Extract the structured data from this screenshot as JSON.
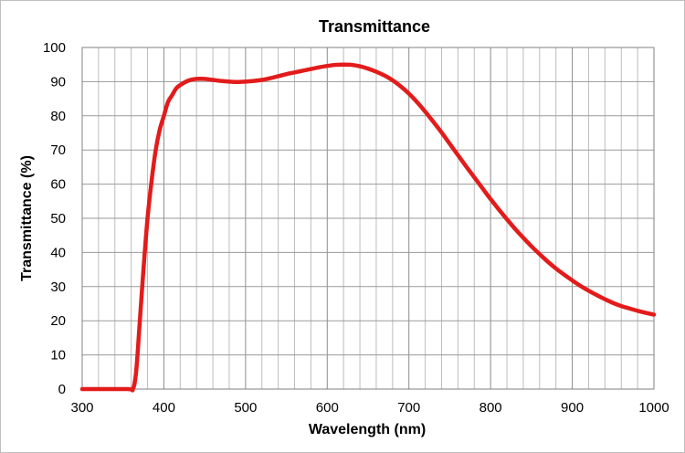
{
  "chart_data": {
    "type": "line",
    "title": "Transmittance",
    "xlabel": "Wavelength (nm)",
    "ylabel": "Transmittance (%)",
    "xlim": [
      300,
      1000
    ],
    "ylim": [
      0,
      100
    ],
    "x_ticks": [
      "300",
      "400",
      "500",
      "600",
      "700",
      "800",
      "900",
      "1000"
    ],
    "y_ticks": [
      "0",
      "10",
      "20",
      "30",
      "40",
      "50",
      "60",
      "70",
      "80",
      "90",
      "100"
    ],
    "grid": true,
    "legend": "none",
    "series": [
      {
        "color": "#e31b1b",
        "points": [
          [
            300,
            0
          ],
          [
            355,
            0
          ],
          [
            362,
            0
          ],
          [
            366,
            5
          ],
          [
            370,
            18
          ],
          [
            375,
            35
          ],
          [
            380,
            50
          ],
          [
            385,
            61
          ],
          [
            390,
            70
          ],
          [
            395,
            76
          ],
          [
            400,
            80
          ],
          [
            405,
            84
          ],
          [
            410,
            86
          ],
          [
            415,
            88
          ],
          [
            420,
            89
          ],
          [
            430,
            90.3
          ],
          [
            440,
            90.8
          ],
          [
            450,
            90.8
          ],
          [
            460,
            90.5
          ],
          [
            470,
            90.2
          ],
          [
            480,
            90
          ],
          [
            490,
            89.9
          ],
          [
            500,
            90
          ],
          [
            510,
            90.2
          ],
          [
            520,
            90.5
          ],
          [
            530,
            91
          ],
          [
            540,
            91.6
          ],
          [
            550,
            92.2
          ],
          [
            560,
            92.7
          ],
          [
            570,
            93.2
          ],
          [
            580,
            93.7
          ],
          [
            590,
            94.2
          ],
          [
            600,
            94.6
          ],
          [
            610,
            94.9
          ],
          [
            620,
            95
          ],
          [
            630,
            94.9
          ],
          [
            640,
            94.5
          ],
          [
            650,
            93.8
          ],
          [
            660,
            92.9
          ],
          [
            670,
            91.8
          ],
          [
            680,
            90.4
          ],
          [
            690,
            88.6
          ],
          [
            700,
            86.5
          ],
          [
            710,
            84
          ],
          [
            720,
            81.2
          ],
          [
            730,
            78.2
          ],
          [
            740,
            75.1
          ],
          [
            750,
            71.8
          ],
          [
            760,
            68.5
          ],
          [
            770,
            65.2
          ],
          [
            780,
            62
          ],
          [
            790,
            58.8
          ],
          [
            800,
            55.6
          ],
          [
            810,
            52.6
          ],
          [
            820,
            49.7
          ],
          [
            830,
            46.9
          ],
          [
            840,
            44.3
          ],
          [
            850,
            41.8
          ],
          [
            860,
            39.5
          ],
          [
            870,
            37.3
          ],
          [
            880,
            35.3
          ],
          [
            890,
            33.5
          ],
          [
            900,
            31.8
          ],
          [
            910,
            30.2
          ],
          [
            920,
            28.8
          ],
          [
            930,
            27.5
          ],
          [
            940,
            26.3
          ],
          [
            950,
            25.2
          ],
          [
            960,
            24.3
          ],
          [
            970,
            23.6
          ],
          [
            980,
            22.9
          ],
          [
            990,
            22.3
          ],
          [
            1000,
            21.8
          ]
        ]
      }
    ]
  }
}
